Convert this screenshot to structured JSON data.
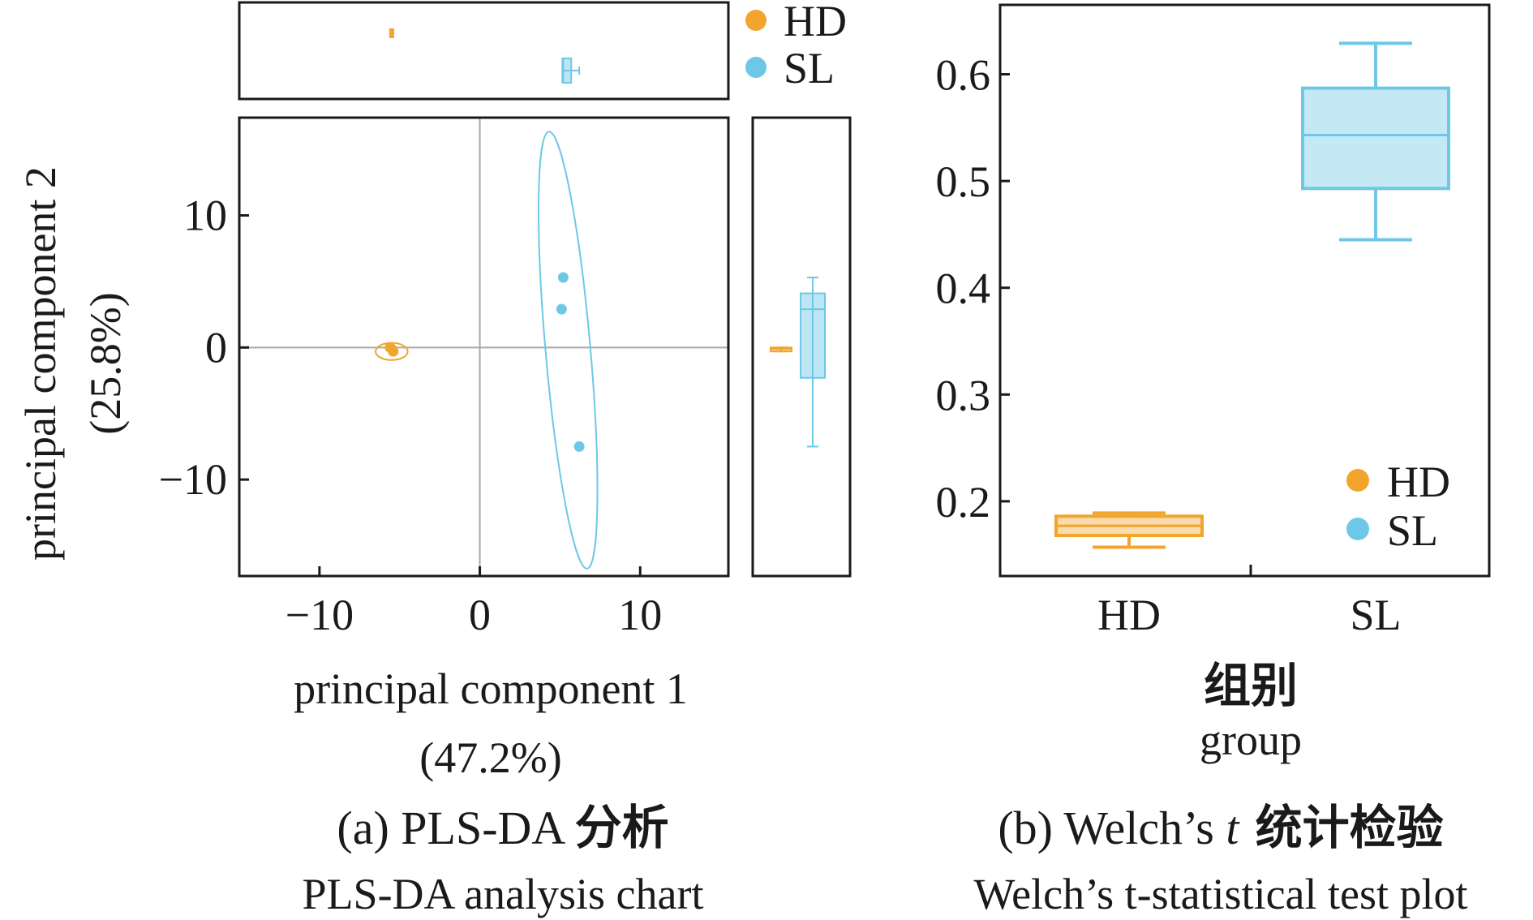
{
  "colors": {
    "HD": "#f2a52c",
    "SL": "#6cc8e6",
    "axis": "#1a1a1a",
    "zero_line": "#a9a9a9"
  },
  "panel_a": {
    "xlabel": "principal component 1",
    "xlabel_pct": "(47.2%)",
    "ylabel": "principal component 2",
    "ylabel_pct": "(25.8%)",
    "xticks": [
      "−10",
      "0",
      "10"
    ],
    "yticks": [
      "10",
      "0",
      "−10"
    ],
    "caption_prefix": "(a) PLS-DA ",
    "caption_cn": "分析",
    "caption_en": "PLS-DA analysis chart",
    "legend": [
      "HD",
      "SL"
    ]
  },
  "panel_b": {
    "xticks": [
      "HD",
      "SL"
    ],
    "yticks": [
      "0.6",
      "0.5",
      "0.4",
      "0.3",
      "0.2"
    ],
    "xlabel_cn": "组别",
    "xlabel_en": "group",
    "caption_prefix": "(b) Welch’s ",
    "caption_italic": "t",
    "caption_cn": " 统计检验",
    "caption_en": "Welch’s t-statistical test plot",
    "legend": [
      "HD",
      "SL"
    ]
  },
  "chart_data": [
    {
      "type": "scatter",
      "title": "(a) PLS-DA 分析",
      "xlabel": "principal component 1 (47.2%)",
      "ylabel": "principal component 2 (25.8%)",
      "xlim": [
        -15,
        15.5
      ],
      "ylim": [
        -17.3,
        17.4
      ],
      "series": [
        {
          "name": "HD",
          "points": [
            [
              -5.6,
              0.0
            ],
            [
              -5.4,
              -0.3
            ],
            [
              -5.5,
              -0.1
            ]
          ],
          "ellipse": {
            "center": [
              -5.5,
              -0.3
            ],
            "rx": 1.0,
            "ry": 0.65
          },
          "top_box_pc1": {
            "whisker": [
              -5.6,
              -5.4
            ],
            "q1": -5.6,
            "median": -5.5,
            "q3": -5.4
          },
          "side_box_pc2": {
            "whisker": [
              -0.3,
              0.0
            ],
            "q1": -0.3,
            "median": -0.1,
            "q3": 0.0
          }
        },
        {
          "name": "SL",
          "points": [
            [
              5.2,
              5.3
            ],
            [
              5.1,
              2.9
            ],
            [
              6.2,
              -7.5
            ]
          ],
          "ellipse": {
            "center": [
              5.5,
              -0.2
            ],
            "rx": 1.4,
            "ry": 16.6,
            "tilt_deg": -5
          },
          "top_box_pc1": {
            "whisker": [
              5.1,
              6.2
            ],
            "q1": 5.15,
            "median": 5.2,
            "q3": 5.7
          },
          "side_box_pc2": {
            "whisker": [
              -7.5,
              5.3
            ],
            "q1": -2.3,
            "median": 2.9,
            "q3": 4.1
          }
        }
      ]
    },
    {
      "type": "box",
      "title": "(b) Welch’s t 统计检验",
      "xlabel": "组别 group",
      "ylabel": "",
      "categories": [
        "HD",
        "SL"
      ],
      "ylim": [
        0.13,
        0.665
      ],
      "boxes": [
        {
          "name": "HD",
          "whisker_low": 0.157,
          "q1": 0.168,
          "median": 0.177,
          "q3": 0.186,
          "whisker_high": 0.189
        },
        {
          "name": "SL",
          "whisker_low": 0.445,
          "q1": 0.493,
          "median": 0.543,
          "q3": 0.587,
          "whisker_high": 0.629
        }
      ]
    }
  ]
}
